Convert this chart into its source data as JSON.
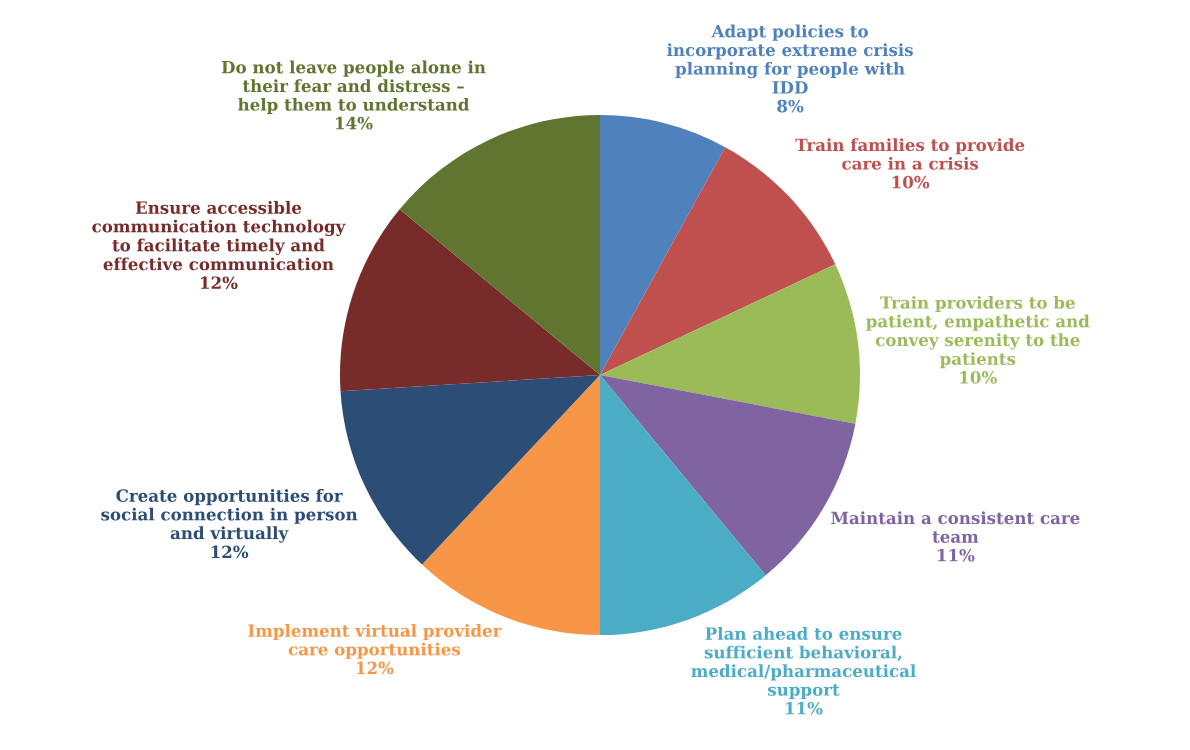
{
  "chart_data": {
    "type": "pie",
    "categories": [
      "Adapt policies to\nincorporate extreme crisis\nplanning for people with\nIDD",
      "Train families to provide\ncare in a crisis",
      "Train providers to be\npatient, empathetic and\nconvey serenity to the\npatients",
      "Maintain a consistent care\nteam",
      "Plan ahead to ensure\nsufficient behavioral,\nmedical/pharmaceutical\nsupport",
      "Implement virtual provider\ncare opportunities",
      "Create opportunities for\nsocial connection in person\nand virtually",
      "Ensure accessible\ncommunication technology\nto facilitate timely and\neffective communication",
      "Do not leave people alone in\ntheir fear and distress –\nhelp them to understand"
    ],
    "values": [
      8,
      10,
      10,
      11,
      11,
      12,
      12,
      12,
      14
    ],
    "value_labels": [
      "8%",
      "10%",
      "10%",
      "11%",
      "11%",
      "12%",
      "12%",
      "12%",
      "14%"
    ],
    "colors": [
      "#4f81bd",
      "#c0504d",
      "#9bbb59",
      "#8064a2",
      "#4bacc6",
      "#f79646",
      "#2c4d75",
      "#772c2a",
      "#5f7530"
    ],
    "legend": false
  }
}
